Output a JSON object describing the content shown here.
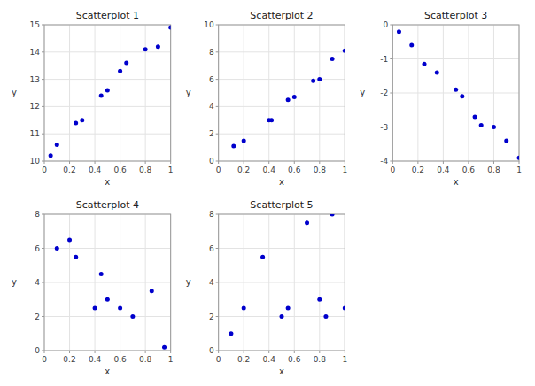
{
  "chart_data": [
    {
      "type": "scatter",
      "title": "Scatterplot 1",
      "x_label": "x",
      "y_label": "y",
      "x": [
        0.05,
        0.1,
        0.25,
        0.3,
        0.45,
        0.5,
        0.6,
        0.65,
        0.8,
        0.9,
        1.0
      ],
      "values": [
        10.2,
        10.6,
        11.4,
        11.5,
        12.4,
        12.6,
        13.3,
        13.6,
        14.1,
        14.2,
        14.9
      ],
      "xlim": [
        0,
        1
      ],
      "ylim": [
        10,
        15
      ],
      "xticks": [
        0,
        0.2,
        0.4,
        0.6,
        0.8,
        1
      ],
      "yticks": [
        10,
        11,
        12,
        13,
        14,
        15
      ],
      "grid": true,
      "color": "#0000cc"
    },
    {
      "type": "scatter",
      "title": "Scatterplot 2",
      "x_label": "x",
      "y_label": "y",
      "x": [
        0.12,
        0.2,
        0.4,
        0.42,
        0.55,
        0.6,
        0.75,
        0.8,
        0.9,
        1.0
      ],
      "values": [
        1.1,
        1.5,
        3.0,
        3.0,
        4.5,
        4.7,
        5.9,
        6.0,
        7.5,
        8.1
      ],
      "xlim": [
        0,
        1
      ],
      "ylim": [
        0,
        10
      ],
      "xticks": [
        0,
        0.2,
        0.4,
        0.6,
        0.8,
        1
      ],
      "yticks": [
        0,
        2,
        4,
        6,
        8,
        10
      ],
      "grid": true,
      "color": "#0000cc"
    },
    {
      "type": "scatter",
      "title": "Scatterplot 3",
      "x_label": "x",
      "y_label": "y",
      "x": [
        0.05,
        0.15,
        0.25,
        0.35,
        0.5,
        0.55,
        0.65,
        0.7,
        0.8,
        0.9,
        1.0
      ],
      "values": [
        -0.2,
        -0.6,
        -1.15,
        -1.4,
        -1.9,
        -2.1,
        -2.7,
        -2.95,
        -3.0,
        -3.4,
        -3.9
      ],
      "xlim": [
        0,
        1
      ],
      "ylim": [
        -4,
        0
      ],
      "xticks": [
        0,
        0.2,
        0.4,
        0.6,
        0.8,
        1
      ],
      "yticks": [
        -4,
        -3,
        -2,
        -1,
        0
      ],
      "grid": true,
      "color": "#0000cc"
    },
    {
      "type": "scatter",
      "title": "Scatterplot 4",
      "x_label": "x",
      "y_label": "y",
      "x": [
        0.1,
        0.2,
        0.25,
        0.4,
        0.45,
        0.5,
        0.6,
        0.7,
        0.85,
        0.95
      ],
      "values": [
        6.0,
        6.5,
        5.5,
        2.5,
        4.5,
        3.0,
        2.5,
        2.0,
        3.5,
        0.2
      ],
      "xlim": [
        0,
        1
      ],
      "ylim": [
        0,
        8
      ],
      "xticks": [
        0,
        0.2,
        0.4,
        0.6,
        0.8,
        1
      ],
      "yticks": [
        0,
        2,
        4,
        6,
        8
      ],
      "grid": true,
      "color": "#0000cc"
    },
    {
      "type": "scatter",
      "title": "Scatterplot 5",
      "x_label": "x",
      "y_label": "y",
      "x": [
        0.1,
        0.2,
        0.35,
        0.5,
        0.55,
        0.7,
        0.8,
        0.85,
        0.9,
        1.0
      ],
      "values": [
        1.0,
        2.5,
        5.5,
        2.0,
        2.5,
        7.5,
        3.0,
        2.0,
        8.0,
        2.5
      ],
      "xlim": [
        0,
        1
      ],
      "ylim": [
        0,
        8
      ],
      "xticks": [
        0,
        0.2,
        0.4,
        0.6,
        0.8,
        1
      ],
      "yticks": [
        0,
        2,
        4,
        6,
        8
      ],
      "grid": true,
      "color": "#0000cc"
    }
  ]
}
